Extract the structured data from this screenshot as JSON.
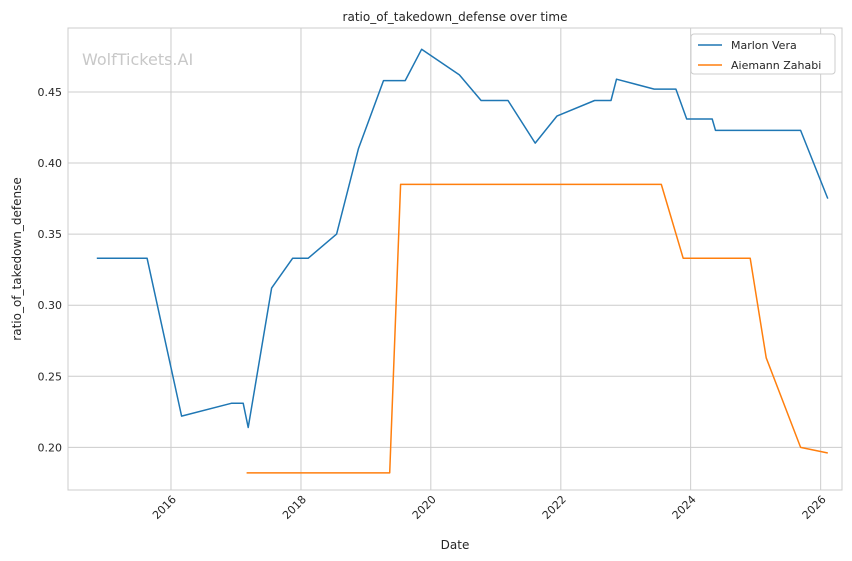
{
  "chart_data": {
    "type": "line",
    "title": "ratio_of_takedown_defense over time",
    "xlabel": "Date",
    "ylabel": "ratio_of_takedown_defense",
    "watermark": "WolfTickets.AI",
    "xlim": [
      "2014-06-01",
      "2026-05-01"
    ],
    "ylim": [
      0.17,
      0.495
    ],
    "x_ticks": [
      "2016-01-01",
      "2018-01-01",
      "2020-01-01",
      "2022-01-01",
      "2024-01-01",
      "2026-01-01"
    ],
    "x_tick_labels": [
      "2016",
      "2018",
      "2020",
      "2022",
      "2024",
      "2026"
    ],
    "y_ticks": [
      0.2,
      0.25,
      0.3,
      0.35,
      0.4,
      0.45
    ],
    "y_tick_labels": [
      "0.20",
      "0.25",
      "0.30",
      "0.35",
      "0.40",
      "0.45"
    ],
    "grid": true,
    "legend_position": "top-right",
    "series": [
      {
        "name": "Marlon Vera",
        "color": "#1f77b4",
        "points": [
          [
            "2014-11-10",
            0.333
          ],
          [
            "2015-08-20",
            0.333
          ],
          [
            "2016-03-01",
            0.222
          ],
          [
            "2016-12-05",
            0.231
          ],
          [
            "2017-02-10",
            0.231
          ],
          [
            "2017-03-10",
            0.214
          ],
          [
            "2017-07-20",
            0.312
          ],
          [
            "2017-11-15",
            0.333
          ],
          [
            "2018-02-10",
            0.333
          ],
          [
            "2018-07-20",
            0.35
          ],
          [
            "2018-11-20",
            0.41
          ],
          [
            "2019-04-10",
            0.458
          ],
          [
            "2019-08-10",
            0.458
          ],
          [
            "2019-11-10",
            0.48
          ],
          [
            "2020-06-10",
            0.462
          ],
          [
            "2020-10-10",
            0.444
          ],
          [
            "2021-03-10",
            0.444
          ],
          [
            "2021-08-10",
            0.414
          ],
          [
            "2021-12-10",
            0.433
          ],
          [
            "2022-07-10",
            0.444
          ],
          [
            "2022-10-10",
            0.444
          ],
          [
            "2022-11-10",
            0.459
          ],
          [
            "2023-06-10",
            0.452
          ],
          [
            "2023-10-10",
            0.452
          ],
          [
            "2023-12-10",
            0.431
          ],
          [
            "2024-05-01",
            0.431
          ],
          [
            "2024-05-20",
            0.423
          ],
          [
            "2025-09-10",
            0.423
          ],
          [
            "2026-02-10",
            0.375
          ]
        ]
      },
      {
        "name": "Aiemann Zahabi",
        "color": "#ff7f0e",
        "points": [
          [
            "2017-03-01",
            0.182
          ],
          [
            "2019-05-15",
            0.182
          ],
          [
            "2019-07-15",
            0.385
          ],
          [
            "2023-07-20",
            0.385
          ],
          [
            "2023-11-20",
            0.333
          ],
          [
            "2024-12-01",
            0.333
          ],
          [
            "2025-03-01",
            0.263
          ],
          [
            "2025-09-10",
            0.2
          ],
          [
            "2026-02-10",
            0.196
          ]
        ]
      }
    ]
  }
}
